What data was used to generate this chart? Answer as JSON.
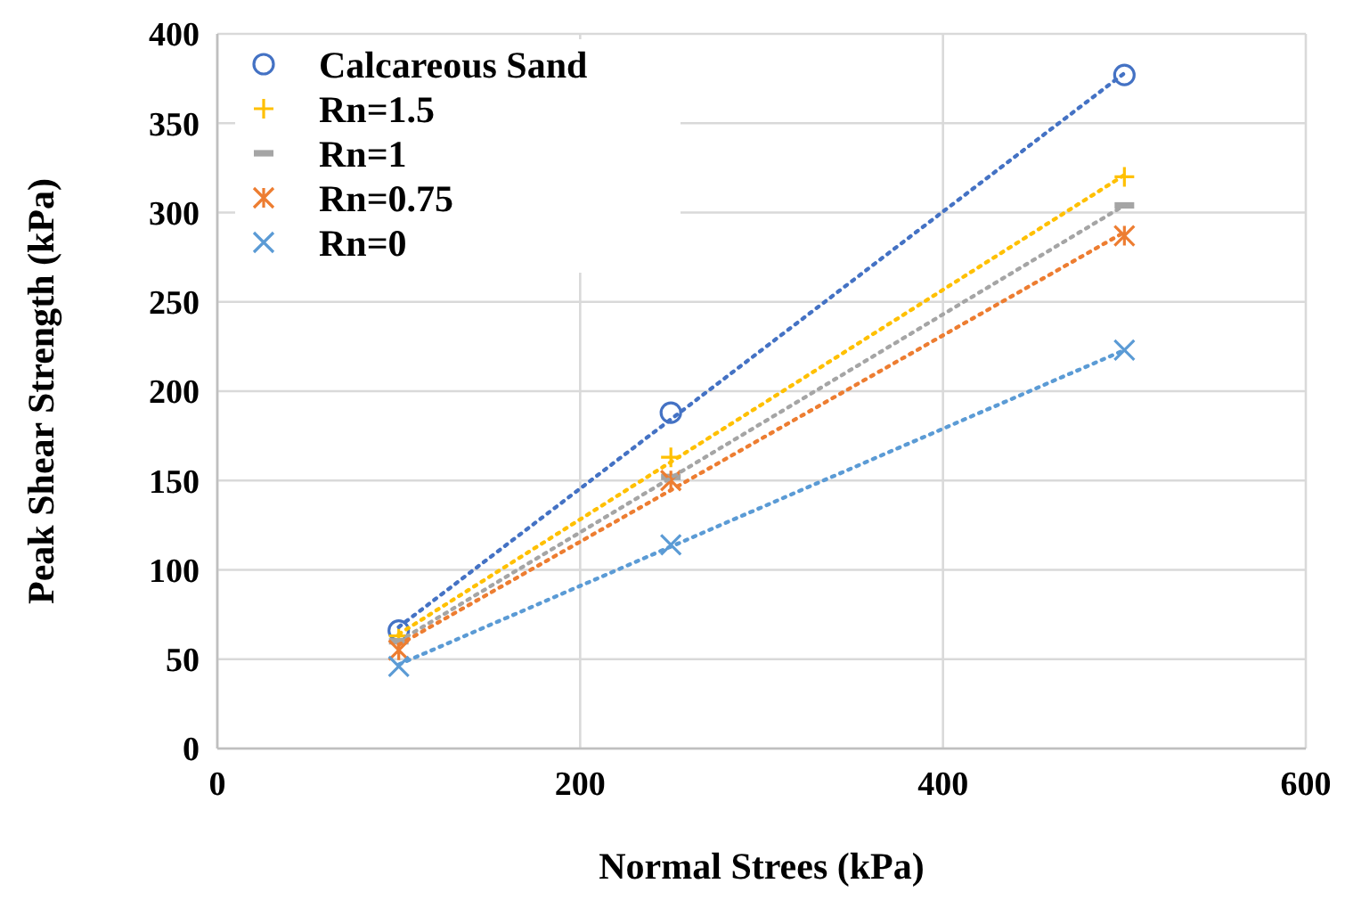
{
  "chart_data": {
    "type": "scatter",
    "xlabel": "Normal Strees (kPa)",
    "ylabel": "Peak Shear Strength (kPa)",
    "xlim": [
      0,
      600
    ],
    "xticks": [
      0,
      200,
      400,
      600
    ],
    "ylim": [
      0,
      400
    ],
    "yticks": [
      0,
      50,
      100,
      150,
      200,
      250,
      300,
      350,
      400
    ],
    "grid": true,
    "legend": "top left",
    "series": [
      {
        "name": "Calcareous Sand",
        "color": "#4472c4",
        "marker": "circle",
        "x": [
          100,
          250,
          500
        ],
        "values": [
          66,
          188,
          377
        ]
      },
      {
        "name": "Rn=1.5",
        "color": "#ffc000",
        "marker": "plus",
        "x": [
          100,
          250,
          500
        ],
        "values": [
          63,
          163,
          320
        ]
      },
      {
        "name": "Rn=1",
        "color": "#a5a5a5",
        "marker": "square",
        "x": [
          100,
          250,
          500
        ],
        "values": [
          60,
          152,
          304
        ]
      },
      {
        "name": "Rn=0.75",
        "color": "#ed7d31",
        "marker": "cross",
        "x": [
          100,
          250,
          500
        ],
        "values": [
          55,
          150,
          287
        ]
      },
      {
        "name": "Rn=0",
        "color": "#5b9bd5",
        "marker": "x",
        "x": [
          100,
          250,
          500
        ],
        "values": [
          46,
          114,
          223
        ]
      },
      {
        "type": "line",
        "color": "#4472c4",
        "line_style": "dotted",
        "x": [
          100,
          500
        ],
        "values": [
          68,
          378
        ]
      },
      {
        "type": "line",
        "color": "#ffc000",
        "line_style": "dotted",
        "x": [
          100,
          500
        ],
        "values": [
          64,
          321
        ]
      },
      {
        "type": "line",
        "color": "#a5a5a5",
        "line_style": "dotted",
        "x": [
          100,
          500
        ],
        "values": [
          60,
          304
        ]
      },
      {
        "type": "line",
        "color": "#ed7d31",
        "line_style": "dotted",
        "x": [
          100,
          500
        ],
        "values": [
          58,
          289
        ]
      },
      {
        "type": "line",
        "color": "#5b9bd5",
        "line_style": "dotted",
        "x": [
          100,
          500
        ],
        "values": [
          47,
          223
        ]
      }
    ]
  }
}
